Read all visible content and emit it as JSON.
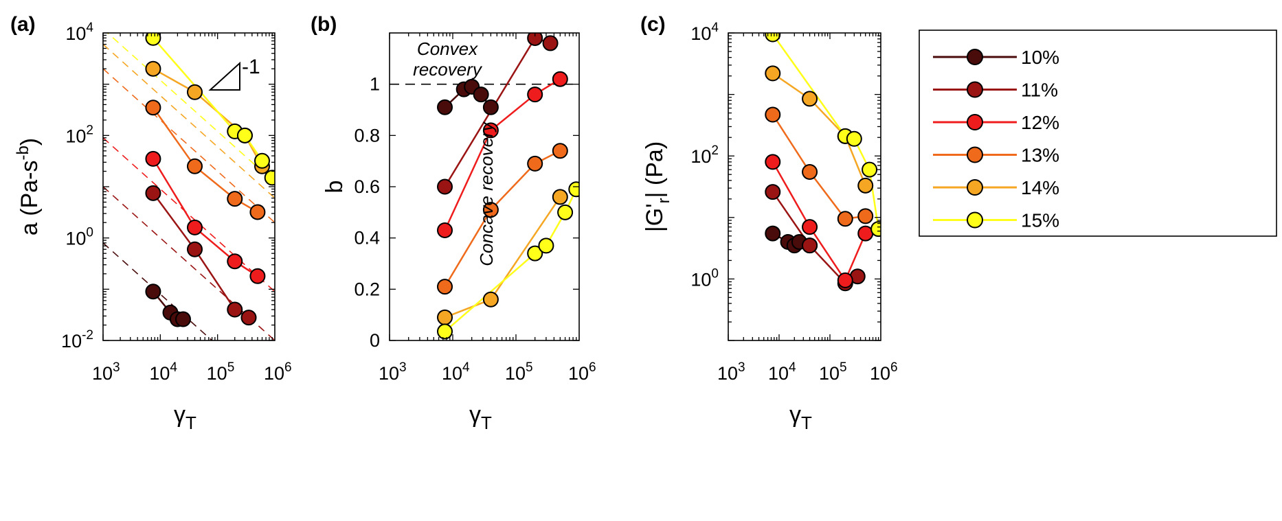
{
  "figure": {
    "legend": {
      "entries": [
        {
          "label": "10%",
          "color": "#4a0b0b"
        },
        {
          "label": "11%",
          "color": "#9a1414"
        },
        {
          "label": "12%",
          "color": "#ee1c1c"
        },
        {
          "label": "13%",
          "color": "#ef6a1b"
        },
        {
          "label": "14%",
          "color": "#f5a623"
        },
        {
          "label": "15%",
          "color": "#ffff1a"
        }
      ]
    }
  },
  "chart_data": [
    {
      "panel": "(a)",
      "type": "scatter",
      "xlabel": "γ_T",
      "ylabel": "a (Pa-s^-b)",
      "xscale": "log",
      "yscale": "log",
      "xlim": [
        1000,
        1000000
      ],
      "ylim": [
        0.01,
        10000
      ],
      "xticks": [
        {
          "base": "10",
          "exp": "3"
        },
        {
          "base": "10",
          "exp": "4"
        },
        {
          "base": "10",
          "exp": "5"
        },
        {
          "base": "10",
          "exp": "6"
        }
      ],
      "yticks": [
        {
          "base": "10",
          "exp": "-2"
        },
        {
          "base": "10",
          "exp": "0"
        },
        {
          "base": "10",
          "exp": "2"
        },
        {
          "base": "10",
          "exp": "4"
        }
      ],
      "annotations": [
        {
          "text": "-1"
        }
      ],
      "fit_slope": -1,
      "series": [
        {
          "name": "10%",
          "x": [
            7500,
            15000,
            20000,
            25000
          ],
          "y": [
            0.09,
            0.035,
            0.026,
            0.026
          ],
          "fit_c": 800
        },
        {
          "name": "11%",
          "x": [
            7500,
            40000,
            200000,
            350000
          ],
          "y": [
            7.5,
            0.6,
            0.04,
            0.028
          ],
          "fit_c": 10000
        },
        {
          "name": "12%",
          "x": [
            7500,
            40000,
            200000,
            500000
          ],
          "y": [
            35,
            1.6,
            0.35,
            0.18
          ],
          "fit_c": 90000
        },
        {
          "name": "13%",
          "x": [
            7500,
            40000,
            200000,
            500000
          ],
          "y": [
            350,
            25,
            5.8,
            3.2
          ],
          "fit_c": 2000000
        },
        {
          "name": "14%",
          "x": [
            7500,
            40000,
            300000,
            600000
          ],
          "y": [
            2000,
            700,
            100,
            25
          ],
          "fit_c": 6000000
        },
        {
          "name": "15%",
          "x": [
            7500,
            200000,
            300000,
            600000,
            900000
          ],
          "y": [
            8000,
            120,
            100,
            32,
            15
          ],
          "fit_c": 12000000
        }
      ]
    },
    {
      "panel": "(b)",
      "type": "line",
      "xlabel": "γ_T",
      "ylabel": "b",
      "xscale": "log",
      "yscale": "linear",
      "xlim": [
        1000,
        1000000
      ],
      "ylim": [
        0,
        1.2
      ],
      "xticks": [
        {
          "base": "10",
          "exp": "3"
        },
        {
          "base": "10",
          "exp": "4"
        },
        {
          "base": "10",
          "exp": "5"
        },
        {
          "base": "10",
          "exp": "6"
        }
      ],
      "yticks": [
        "0",
        "0.2",
        "0.4",
        "0.6",
        "0.8",
        "1"
      ],
      "reference_line_y": 1,
      "annotations": [
        {
          "text_lines": [
            "Convex",
            "recovery"
          ]
        },
        {
          "text": "Concave recovery"
        }
      ],
      "series": [
        {
          "name": "10%",
          "x": [
            7500,
            15000,
            20000,
            28000,
            40000
          ],
          "y": [
            0.91,
            0.98,
            0.99,
            0.96,
            0.91
          ]
        },
        {
          "name": "11%",
          "x": [
            7500,
            200000,
            350000
          ],
          "y": [
            0.6,
            1.18,
            1.16
          ]
        },
        {
          "name": "12%",
          "x": [
            7500,
            40000,
            200000,
            500000
          ],
          "y": [
            0.43,
            0.82,
            0.96,
            1.02
          ]
        },
        {
          "name": "13%",
          "x": [
            7500,
            40000,
            200000,
            500000
          ],
          "y": [
            0.21,
            0.51,
            0.69,
            0.74
          ]
        },
        {
          "name": "14%",
          "x": [
            7500,
            40000,
            500000
          ],
          "y": [
            0.09,
            0.16,
            0.56
          ]
        },
        {
          "name": "15%",
          "x": [
            7500,
            200000,
            300000,
            600000,
            900000
          ],
          "y": [
            0.035,
            0.34,
            0.37,
            0.5,
            0.59
          ]
        }
      ]
    },
    {
      "panel": "(c)",
      "type": "line",
      "xlabel": "γ_T",
      "ylabel": "|G'_r| (Pa)",
      "xscale": "log",
      "yscale": "log",
      "xlim": [
        1000,
        1000000
      ],
      "ylim": [
        0.1,
        10000
      ],
      "xticks": [
        {
          "base": "10",
          "exp": "3"
        },
        {
          "base": "10",
          "exp": "4"
        },
        {
          "base": "10",
          "exp": "5"
        },
        {
          "base": "10",
          "exp": "6"
        }
      ],
      "yticks": [
        {
          "base": "10",
          "exp": "0"
        },
        {
          "base": "10",
          "exp": "2"
        },
        {
          "base": "10",
          "exp": "4"
        }
      ],
      "series": [
        {
          "name": "10%",
          "x": [
            7500,
            15000,
            20000,
            25000,
            40000
          ],
          "y": [
            5.5,
            4.0,
            3.5,
            4.0,
            3.5
          ]
        },
        {
          "name": "11%",
          "x": [
            7500,
            40000,
            200000,
            350000
          ],
          "y": [
            26,
            3.5,
            0.85,
            1.1
          ]
        },
        {
          "name": "12%",
          "x": [
            7500,
            40000,
            200000,
            500000
          ],
          "y": [
            80,
            7,
            0.95,
            5.5
          ]
        },
        {
          "name": "13%",
          "x": [
            7500,
            40000,
            200000,
            500000
          ],
          "y": [
            470,
            55,
            9.5,
            10.5
          ]
        },
        {
          "name": "14%",
          "x": [
            7500,
            40000,
            200000,
            500000
          ],
          "y": [
            2200,
            850,
            210,
            33
          ]
        },
        {
          "name": "15%",
          "x": [
            7500,
            200000,
            300000,
            600000,
            900000
          ],
          "y": [
            9500,
            210,
            190,
            60,
            6.5
          ]
        }
      ]
    }
  ]
}
